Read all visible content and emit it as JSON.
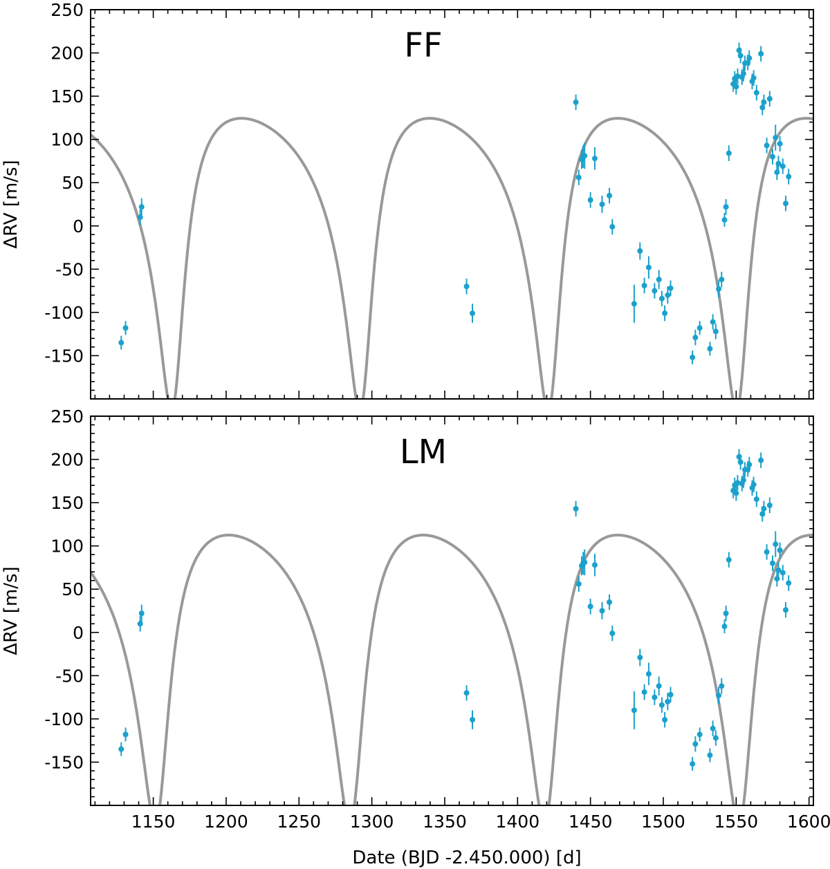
{
  "colors": {
    "data": "#1ba1cc",
    "model": "#999999",
    "axes": "#000000"
  },
  "chart_data": [
    {
      "type": "scatter",
      "title": "FF",
      "xlabel": "",
      "ylabel": "ΔRV [m/s]",
      "xlim": [
        1107,
        1603
      ],
      "ylim": [
        -200,
        250
      ],
      "yticks": [
        -150,
        -100,
        -50,
        0,
        50,
        100,
        150,
        200,
        250
      ],
      "ytick_labels": [
        "-150",
        "-100",
        "-50",
        "0",
        "50",
        "100",
        "150",
        "200",
        "250"
      ],
      "xticks": [
        1150,
        1200,
        1250,
        1300,
        1350,
        1400,
        1450,
        1500,
        1550,
        1600
      ],
      "xtick_labels": [],
      "model": {
        "period": 129.2,
        "amp": 169,
        "ecc": 0.52,
        "tp": 1164.5,
        "omega_deg": 200,
        "offset": 38
      },
      "series": [
        {
          "name": "RV data",
          "points": [
            [
              1128,
              -135,
              8
            ],
            [
              1131,
              -118,
              8
            ],
            [
              1141,
              10,
              9
            ],
            [
              1142,
              22,
              10
            ],
            [
              1365,
              -70,
              9
            ],
            [
              1369,
              -101,
              11
            ],
            [
              1440,
              143,
              9
            ],
            [
              1442,
              56,
              9
            ],
            [
              1444,
              77,
              11
            ],
            [
              1445,
              80,
              13
            ],
            [
              1446,
              81,
              15
            ],
            [
              1450,
              30,
              9
            ],
            [
              1453,
              78,
              13
            ],
            [
              1458,
              25,
              10
            ],
            [
              1463,
              35,
              9
            ],
            [
              1465,
              -1,
              9
            ],
            [
              1480,
              -90,
              22
            ],
            [
              1484,
              -29,
              10
            ],
            [
              1487,
              -69,
              9
            ],
            [
              1490,
              -48,
              13
            ],
            [
              1494,
              -75,
              9
            ],
            [
              1497,
              -62,
              11
            ],
            [
              1499,
              -84,
              9
            ],
            [
              1501,
              -101,
              9
            ],
            [
              1503,
              -80,
              10
            ],
            [
              1505,
              -72,
              9
            ],
            [
              1520,
              -152,
              8
            ],
            [
              1522,
              -129,
              9
            ],
            [
              1525,
              -118,
              8
            ],
            [
              1532,
              -142,
              8
            ],
            [
              1534,
              -111,
              9
            ],
            [
              1536,
              -122,
              9
            ],
            [
              1538,
              -73,
              10
            ],
            [
              1540,
              -62,
              9
            ],
            [
              1542,
              7,
              8
            ],
            [
              1543,
              22,
              9
            ],
            [
              1545,
              84,
              9
            ],
            [
              1548,
              164,
              9
            ],
            [
              1549,
              170,
              9
            ],
            [
              1550,
              161,
              9
            ],
            [
              1551,
              173,
              9
            ],
            [
              1552,
              203,
              9
            ],
            [
              1553,
              197,
              9
            ],
            [
              1554,
              172,
              9
            ],
            [
              1555,
              176,
              9
            ],
            [
              1556,
              188,
              9
            ],
            [
              1558,
              189,
              9
            ],
            [
              1559,
              194,
              9
            ],
            [
              1561,
              167,
              9
            ],
            [
              1562,
              171,
              9
            ],
            [
              1564,
              154,
              9
            ],
            [
              1567,
              199,
              9
            ],
            [
              1568,
              137,
              9
            ],
            [
              1569,
              143,
              9
            ],
            [
              1571,
              93,
              9
            ],
            [
              1573,
              147,
              9
            ],
            [
              1575,
              80,
              9
            ],
            [
              1577,
              102,
              15
            ],
            [
              1578,
              62,
              9
            ],
            [
              1579,
              72,
              9
            ],
            [
              1580,
              95,
              9
            ],
            [
              1582,
              69,
              9
            ],
            [
              1584,
              26,
              9
            ],
            [
              1586,
              57,
              9
            ]
          ]
        }
      ]
    },
    {
      "type": "scatter",
      "title": "LM",
      "xlabel": "Date (BJD -2.450.000) [d]",
      "ylabel": "ΔRV [m/s]",
      "xlim": [
        1107,
        1603
      ],
      "ylim": [
        -200,
        250
      ],
      "yticks": [
        -150,
        -100,
        -50,
        0,
        50,
        100,
        150,
        200,
        250
      ],
      "ytick_labels": [
        "-150",
        "-100",
        "-50",
        "0",
        "50",
        "100",
        "150",
        "200",
        "250"
      ],
      "xticks": [
        1150,
        1200,
        1250,
        1300,
        1350,
        1400,
        1450,
        1500,
        1550,
        1600
      ],
      "xtick_labels": [
        "1150",
        "1200",
        "1250",
        "1300",
        "1350",
        "1400",
        "1450",
        "1500",
        "1550",
        "1600"
      ],
      "model": {
        "period": 133.5,
        "amp": 167,
        "ecc": 0.5,
        "tp": 1153.5,
        "omega_deg": 200,
        "offset": 24
      },
      "series": [
        {
          "name": "RV data",
          "points": [
            [
              1128,
              -135,
              8
            ],
            [
              1131,
              -118,
              8
            ],
            [
              1141,
              10,
              9
            ],
            [
              1142,
              22,
              10
            ],
            [
              1365,
              -70,
              9
            ],
            [
              1369,
              -101,
              11
            ],
            [
              1440,
              143,
              9
            ],
            [
              1442,
              56,
              9
            ],
            [
              1444,
              77,
              11
            ],
            [
              1445,
              80,
              13
            ],
            [
              1446,
              81,
              15
            ],
            [
              1450,
              30,
              9
            ],
            [
              1453,
              78,
              13
            ],
            [
              1458,
              25,
              10
            ],
            [
              1463,
              35,
              9
            ],
            [
              1465,
              -1,
              9
            ],
            [
              1480,
              -90,
              22
            ],
            [
              1484,
              -29,
              10
            ],
            [
              1487,
              -69,
              9
            ],
            [
              1490,
              -48,
              13
            ],
            [
              1494,
              -75,
              9
            ],
            [
              1497,
              -62,
              11
            ],
            [
              1499,
              -84,
              9
            ],
            [
              1501,
              -101,
              9
            ],
            [
              1503,
              -80,
              10
            ],
            [
              1505,
              -72,
              9
            ],
            [
              1520,
              -152,
              8
            ],
            [
              1522,
              -129,
              9
            ],
            [
              1525,
              -118,
              8
            ],
            [
              1532,
              -142,
              8
            ],
            [
              1534,
              -111,
              9
            ],
            [
              1536,
              -122,
              9
            ],
            [
              1538,
              -73,
              10
            ],
            [
              1540,
              -62,
              9
            ],
            [
              1542,
              7,
              8
            ],
            [
              1543,
              22,
              9
            ],
            [
              1545,
              84,
              9
            ],
            [
              1548,
              164,
              9
            ],
            [
              1549,
              170,
              9
            ],
            [
              1550,
              161,
              9
            ],
            [
              1551,
              173,
              9
            ],
            [
              1552,
              203,
              9
            ],
            [
              1553,
              197,
              9
            ],
            [
              1554,
              172,
              9
            ],
            [
              1555,
              176,
              9
            ],
            [
              1556,
              188,
              9
            ],
            [
              1558,
              189,
              9
            ],
            [
              1559,
              194,
              9
            ],
            [
              1561,
              167,
              9
            ],
            [
              1562,
              171,
              9
            ],
            [
              1564,
              154,
              9
            ],
            [
              1567,
              199,
              9
            ],
            [
              1568,
              137,
              9
            ],
            [
              1569,
              143,
              9
            ],
            [
              1571,
              93,
              9
            ],
            [
              1573,
              147,
              9
            ],
            [
              1575,
              80,
              9
            ],
            [
              1577,
              102,
              15
            ],
            [
              1578,
              62,
              9
            ],
            [
              1579,
              72,
              9
            ],
            [
              1580,
              95,
              9
            ],
            [
              1582,
              69,
              9
            ],
            [
              1584,
              26,
              9
            ],
            [
              1586,
              57,
              9
            ]
          ]
        }
      ]
    }
  ]
}
